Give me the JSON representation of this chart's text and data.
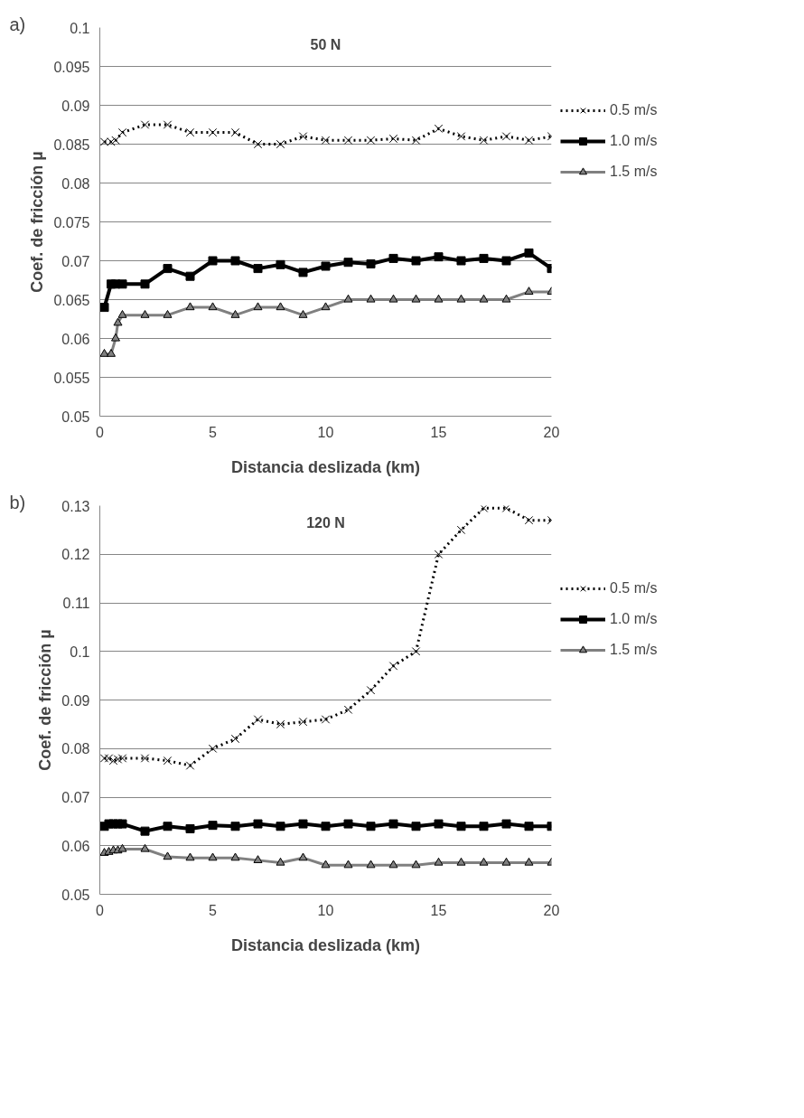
{
  "chart_data": [
    {
      "type": "line",
      "title": "50 N",
      "annotations": [
        "a)"
      ],
      "xlabel": "Distancia deslizada (km)",
      "ylabel": "Coef. de fricción µ",
      "xlim": [
        0,
        20
      ],
      "xticks": [
        0,
        5,
        10,
        15,
        20
      ],
      "ylim": [
        0.05,
        0.1
      ],
      "yticks": [
        0.05,
        0.055,
        0.06,
        0.065,
        0.07,
        0.075,
        0.08,
        0.085,
        0.09,
        0.095,
        0.1
      ],
      "grid": "y",
      "legend": "right",
      "series": [
        {
          "name": "0.5 m/s",
          "color": "#000000",
          "marker": "cross",
          "line_style": "dotted",
          "x": [
            0.2,
            0.5,
            0.7,
            1,
            2,
            3,
            4,
            5,
            6,
            7,
            8,
            9,
            10,
            11,
            12,
            13,
            14,
            15,
            16,
            17,
            18,
            19,
            20
          ],
          "values": [
            0.0853,
            0.0853,
            0.0855,
            0.0865,
            0.0875,
            0.0875,
            0.0865,
            0.0865,
            0.0865,
            0.085,
            0.085,
            0.086,
            0.0855,
            0.0855,
            0.0855,
            0.0857,
            0.0855,
            0.087,
            0.086,
            0.0855,
            0.086,
            0.0855,
            0.086
          ]
        },
        {
          "name": "1.0 m/s",
          "color": "#000000",
          "marker": "square",
          "line_style": "solid",
          "x": [
            0.2,
            0.5,
            0.7,
            1,
            2,
            3,
            4,
            5,
            6,
            7,
            8,
            9,
            10,
            11,
            12,
            13,
            14,
            15,
            16,
            17,
            18,
            19,
            20
          ],
          "values": [
            0.064,
            0.067,
            0.067,
            0.067,
            0.067,
            0.069,
            0.068,
            0.07,
            0.07,
            0.069,
            0.0695,
            0.0685,
            0.0693,
            0.0698,
            0.0696,
            0.0703,
            0.07,
            0.0705,
            0.07,
            0.0703,
            0.07,
            0.071,
            0.069
          ]
        },
        {
          "name": "1.5 m/s",
          "color": "#808080",
          "marker": "triangle",
          "line_style": "solid",
          "x": [
            0.2,
            0.5,
            0.7,
            0.8,
            1,
            2,
            3,
            4,
            5,
            6,
            7,
            8,
            9,
            10,
            11,
            12,
            13,
            14,
            15,
            16,
            17,
            18,
            19,
            20
          ],
          "values": [
            0.058,
            0.058,
            0.06,
            0.062,
            0.063,
            0.063,
            0.063,
            0.064,
            0.064,
            0.063,
            0.064,
            0.064,
            0.063,
            0.064,
            0.065,
            0.065,
            0.065,
            0.065,
            0.065,
            0.065,
            0.065,
            0.065,
            0.066,
            0.066
          ]
        }
      ]
    },
    {
      "type": "line",
      "title": "120 N",
      "annotations": [
        "b)"
      ],
      "xlabel": "Distancia deslizada (km)",
      "ylabel": "Coef. de fricción µ",
      "xlim": [
        0,
        20
      ],
      "xticks": [
        0,
        5,
        10,
        15,
        20
      ],
      "ylim": [
        0.05,
        0.13
      ],
      "yticks": [
        0.05,
        0.06,
        0.07,
        0.08,
        0.09,
        0.1,
        0.11,
        0.12,
        0.13
      ],
      "grid": "y",
      "legend": "right",
      "series": [
        {
          "name": "0.5 m/s",
          "color": "#000000",
          "marker": "cross",
          "line_style": "dotted",
          "x": [
            0.2,
            0.4,
            0.6,
            0.8,
            1,
            2,
            3,
            4,
            5,
            6,
            7,
            8,
            9,
            10,
            11,
            12,
            13,
            14,
            15,
            16,
            17,
            18,
            19,
            20
          ],
          "values": [
            0.078,
            0.078,
            0.0775,
            0.0778,
            0.078,
            0.078,
            0.0775,
            0.0765,
            0.08,
            0.082,
            0.086,
            0.085,
            0.0855,
            0.086,
            0.088,
            0.092,
            0.097,
            0.1,
            0.12,
            0.125,
            0.1295,
            0.1295,
            0.127,
            0.127
          ]
        },
        {
          "name": "1.0 m/s",
          "color": "#000000",
          "marker": "square",
          "line_style": "solid",
          "x": [
            0.2,
            0.4,
            0.6,
            0.8,
            1,
            2,
            3,
            4,
            5,
            6,
            7,
            8,
            9,
            10,
            11,
            12,
            13,
            14,
            15,
            16,
            17,
            18,
            19,
            20
          ],
          "values": [
            0.064,
            0.0645,
            0.0645,
            0.0645,
            0.0645,
            0.063,
            0.064,
            0.0635,
            0.0642,
            0.064,
            0.0645,
            0.064,
            0.0645,
            0.064,
            0.0645,
            0.064,
            0.0645,
            0.064,
            0.0645,
            0.064,
            0.064,
            0.0645,
            0.064,
            0.064
          ]
        },
        {
          "name": "1.5 m/s",
          "color": "#808080",
          "marker": "triangle",
          "line_style": "solid",
          "x": [
            0.2,
            0.4,
            0.6,
            0.8,
            1,
            2,
            3,
            4,
            5,
            6,
            7,
            8,
            9,
            10,
            11,
            12,
            13,
            14,
            15,
            16,
            17,
            18,
            19,
            20
          ],
          "values": [
            0.0585,
            0.0587,
            0.059,
            0.059,
            0.0593,
            0.0593,
            0.0577,
            0.0575,
            0.0575,
            0.0575,
            0.057,
            0.0565,
            0.0575,
            0.056,
            0.056,
            0.056,
            0.056,
            0.056,
            0.0565,
            0.0565,
            0.0565,
            0.0565,
            0.0565,
            0.0565
          ]
        }
      ]
    }
  ]
}
